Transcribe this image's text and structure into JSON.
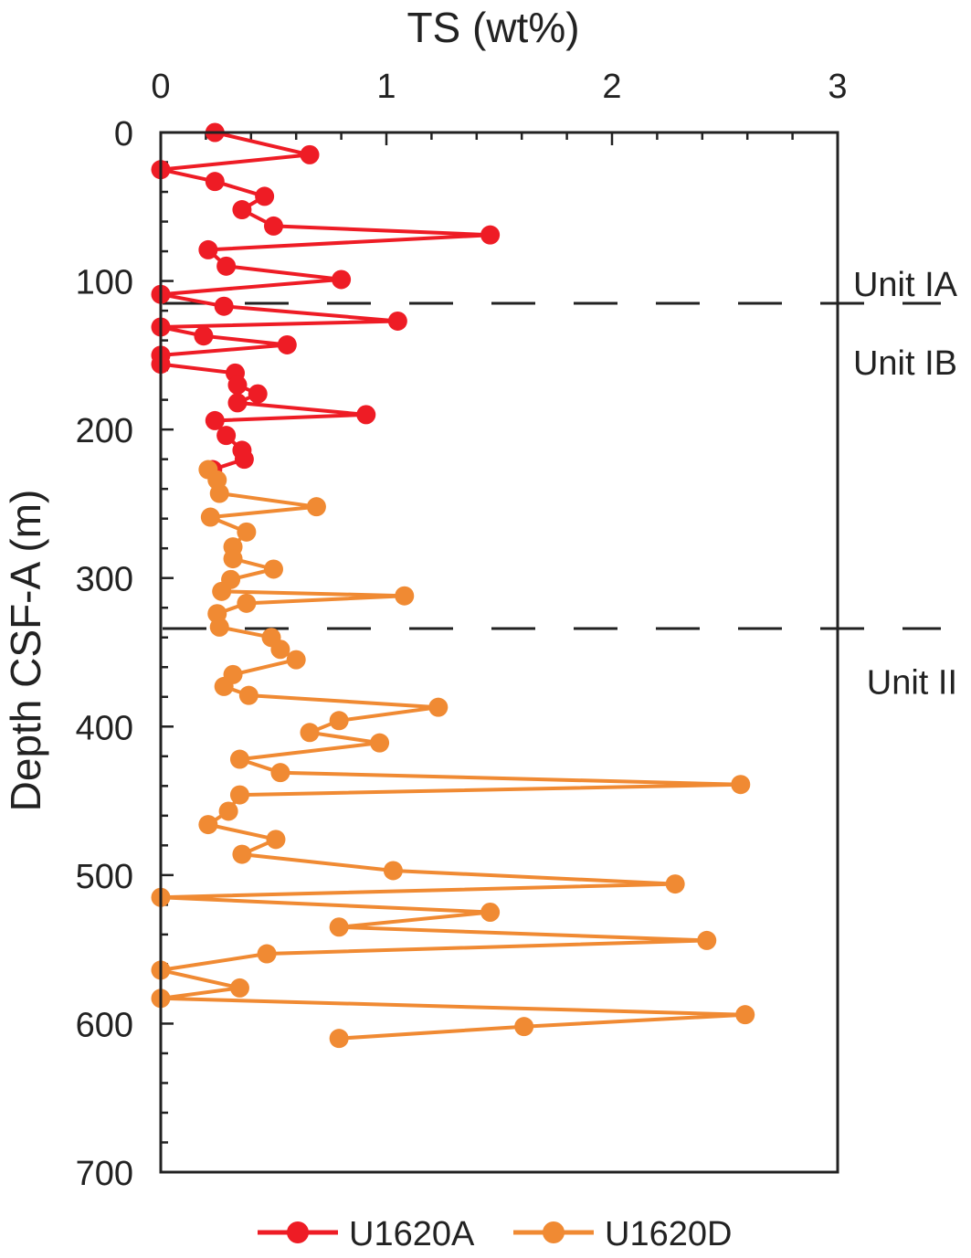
{
  "chart_data": {
    "type": "line",
    "xlabel": "TS (wt%)",
    "ylabel": "Depth CSF-A (m)",
    "x_axis_position": "top",
    "y_axis_inverted": true,
    "xlim": [
      0,
      3
    ],
    "ylim": [
      0,
      700
    ],
    "x_ticks": [
      0,
      1,
      2,
      3
    ],
    "y_ticks": [
      0,
      100,
      200,
      300,
      400,
      500,
      600,
      700
    ],
    "grid": false,
    "legend_position": "bottom",
    "boundaries": [
      {
        "depth": 115,
        "label_above": "Unit IA",
        "label_below": "Unit IB"
      },
      {
        "depth": 334,
        "label_below": "Unit II"
      }
    ],
    "unit_labels": [
      {
        "text": "Unit IA",
        "depth": 102
      },
      {
        "text": "Unit IB",
        "depth": 155
      },
      {
        "text": "Unit II",
        "depth": 370
      }
    ],
    "series": [
      {
        "name": "U1620A",
        "color": "#ee1c25",
        "points": [
          [
            0.24,
            0
          ],
          [
            0.66,
            15
          ],
          [
            0.0,
            25
          ],
          [
            0.24,
            33
          ],
          [
            0.46,
            43
          ],
          [
            0.36,
            52
          ],
          [
            0.5,
            63
          ],
          [
            1.46,
            69
          ],
          [
            0.21,
            79
          ],
          [
            0.29,
            90
          ],
          [
            0.8,
            99
          ],
          [
            0.0,
            109
          ],
          [
            0.28,
            117
          ],
          [
            1.05,
            127
          ],
          [
            0.0,
            131
          ],
          [
            0.19,
            137
          ],
          [
            0.56,
            143
          ],
          [
            0.0,
            150
          ],
          [
            0.0,
            156
          ],
          [
            0.33,
            162
          ],
          [
            0.34,
            170
          ],
          [
            0.43,
            176
          ],
          [
            0.34,
            182
          ],
          [
            0.91,
            190
          ],
          [
            0.24,
            194
          ],
          [
            0.29,
            204
          ],
          [
            0.36,
            214
          ],
          [
            0.37,
            220
          ],
          [
            0.23,
            227
          ]
        ]
      },
      {
        "name": "U1620D",
        "color": "#f08a33",
        "points": [
          [
            0.21,
            227
          ],
          [
            0.25,
            234
          ],
          [
            0.26,
            243
          ],
          [
            0.69,
            252
          ],
          [
            0.22,
            259
          ],
          [
            0.38,
            269
          ],
          [
            0.32,
            279
          ],
          [
            0.32,
            287
          ],
          [
            0.5,
            294
          ],
          [
            0.31,
            301
          ],
          [
            0.27,
            309
          ],
          [
            1.08,
            312
          ],
          [
            0.38,
            317
          ],
          [
            0.25,
            324
          ],
          [
            0.26,
            333
          ],
          [
            0.49,
            340
          ],
          [
            0.53,
            348
          ],
          [
            0.6,
            355
          ],
          [
            0.32,
            365
          ],
          [
            0.28,
            373
          ],
          [
            0.39,
            379
          ],
          [
            1.23,
            387
          ],
          [
            0.79,
            396
          ],
          [
            0.66,
            404
          ],
          [
            0.97,
            411
          ],
          [
            0.35,
            422
          ],
          [
            0.53,
            431
          ],
          [
            2.57,
            439
          ],
          [
            0.35,
            446
          ],
          [
            0.3,
            457
          ],
          [
            0.21,
            466
          ],
          [
            0.51,
            476
          ],
          [
            0.36,
            486
          ],
          [
            1.03,
            497
          ],
          [
            2.28,
            506
          ],
          [
            0.0,
            515
          ],
          [
            1.46,
            525
          ],
          [
            0.79,
            535
          ],
          [
            2.42,
            544
          ],
          [
            0.47,
            553
          ],
          [
            0.0,
            564
          ],
          [
            0.35,
            576
          ],
          [
            0.0,
            583
          ],
          [
            2.59,
            594
          ],
          [
            1.61,
            602
          ],
          [
            0.79,
            610
          ]
        ]
      }
    ]
  }
}
